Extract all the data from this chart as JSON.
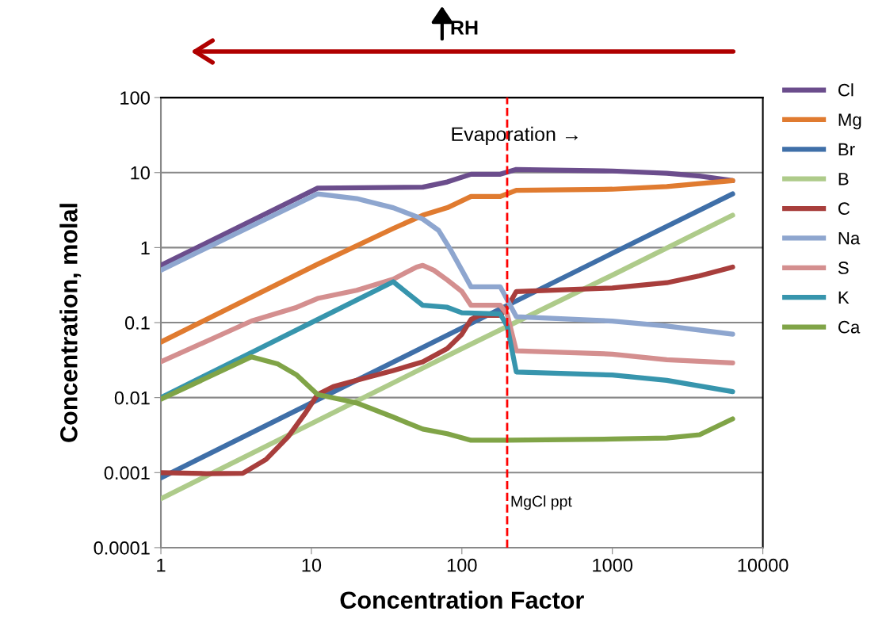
{
  "chart_data": {
    "type": "line",
    "xlabel": "Concentration Factor",
    "ylabel": "Concentration, molal",
    "log": "xy",
    "xlim": [
      1,
      10000
    ],
    "ylim": [
      0.0001,
      100
    ],
    "xticks": [
      1,
      10,
      100,
      1000,
      10000
    ],
    "yticks": [
      0.0001,
      0.001,
      0.01,
      0.1,
      1,
      10,
      100
    ],
    "grid": "y",
    "legend": "right",
    "marker": "none",
    "line_style": "solid",
    "ref_lines": [
      {
        "axis": "x",
        "value": 200,
        "label": "MgCl ppt",
        "color": "#ff0000",
        "line_style": "dashed"
      }
    ],
    "annotations": [
      "Evaporation →",
      "RH"
    ],
    "series": [
      {
        "name": "Cl",
        "color": "#6b4d8c",
        "x": [
          1,
          11,
          55,
          80,
          115,
          180,
          230,
          1000,
          2300,
          3800,
          6300
        ],
        "values": [
          0.58,
          6.2,
          6.4,
          7.5,
          9.5,
          9.5,
          11,
          10.5,
          9.8,
          9,
          7.8
        ]
      },
      {
        "name": "Mg",
        "color": "#e07b30",
        "x": [
          1,
          11,
          35,
          55,
          80,
          115,
          180,
          230,
          1000,
          2300,
          6300
        ],
        "values": [
          0.055,
          0.6,
          1.8,
          2.7,
          3.4,
          4.8,
          4.8,
          5.8,
          6,
          6.5,
          7.8
        ]
      },
      {
        "name": "Br",
        "color": "#3f6fa8",
        "x": [
          1,
          10,
          100,
          1000,
          6300
        ],
        "values": [
          0.00085,
          0.0085,
          0.085,
          0.84,
          5.2
        ]
      },
      {
        "name": "B",
        "color": "#aecb8a",
        "x": [
          1,
          10,
          100,
          1000,
          6300
        ],
        "values": [
          0.00045,
          0.0045,
          0.045,
          0.43,
          2.7
        ]
      },
      {
        "name": "C",
        "color": "#a83e3c",
        "x": [
          1,
          2,
          3.5,
          5,
          7,
          9,
          11,
          14,
          20,
          35,
          55,
          80,
          100,
          115,
          130,
          180,
          200,
          230,
          1000,
          2300,
          3800,
          6300
        ],
        "values": [
          0.001,
          0.00097,
          0.00098,
          0.0015,
          0.003,
          0.006,
          0.011,
          0.014,
          0.017,
          0.023,
          0.03,
          0.045,
          0.07,
          0.11,
          0.125,
          0.125,
          0.16,
          0.26,
          0.29,
          0.34,
          0.42,
          0.55
        ]
      },
      {
        "name": "Na",
        "color": "#8ea6cf",
        "x": [
          1,
          11,
          20,
          35,
          55,
          70,
          85,
          100,
          115,
          180,
          230,
          1000,
          2300,
          6300
        ],
        "values": [
          0.5,
          5.2,
          4.5,
          3.4,
          2.4,
          1.7,
          0.9,
          0.5,
          0.3,
          0.3,
          0.12,
          0.105,
          0.09,
          0.07
        ]
      },
      {
        "name": "S",
        "color": "#d48f8f",
        "x": [
          1,
          4,
          8,
          11,
          20,
          35,
          50,
          55,
          65,
          80,
          100,
          115,
          180,
          200,
          230,
          1000,
          2300,
          6300
        ],
        "values": [
          0.03,
          0.105,
          0.16,
          0.21,
          0.27,
          0.38,
          0.55,
          0.58,
          0.5,
          0.37,
          0.26,
          0.17,
          0.17,
          0.13,
          0.042,
          0.038,
          0.032,
          0.029
        ]
      },
      {
        "name": "K",
        "color": "#3795ad",
        "x": [
          1,
          4,
          11,
          35,
          55,
          80,
          100,
          180,
          200,
          230,
          1000,
          2300,
          6300
        ],
        "values": [
          0.01,
          0.04,
          0.11,
          0.35,
          0.17,
          0.16,
          0.135,
          0.13,
          0.09,
          0.022,
          0.02,
          0.017,
          0.012
        ]
      },
      {
        "name": "Ca",
        "color": "#80a447",
        "x": [
          1,
          4,
          6,
          8,
          11,
          20,
          35,
          55,
          80,
          115,
          200,
          1000,
          2300,
          3800,
          6300
        ],
        "values": [
          0.0095,
          0.035,
          0.028,
          0.02,
          0.011,
          0.0085,
          0.0055,
          0.0038,
          0.0033,
          0.0027,
          0.0027,
          0.0028,
          0.0029,
          0.0032,
          0.0052
        ]
      }
    ]
  }
}
